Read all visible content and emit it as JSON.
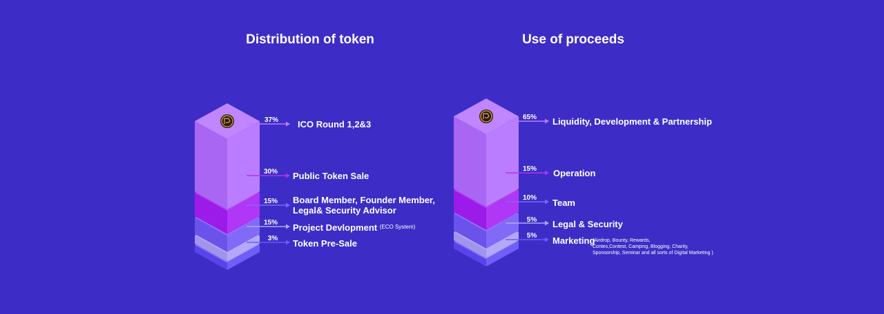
{
  "chart_data": [
    {
      "type": "bar",
      "title": "Distribution of token",
      "categories": [
        "ICO Round 1,2&3",
        "Public Token Sale",
        "Board Member, Founder Member, Legal& Security Advisor",
        "Project Devlopment",
        "Token Pre-Sale"
      ],
      "values": [
        37,
        30,
        15,
        15,
        3
      ],
      "value_labels": [
        "37%",
        "30%",
        "15%",
        "15%",
        "3%"
      ],
      "label_lines": [
        [
          "ICO Round 1,2&3"
        ],
        [
          "Public Token Sale"
        ],
        [
          "Board Member, Founder Member,",
          "Legal& Security Advisor"
        ],
        [
          "Project Devlopment"
        ],
        [
          "Token Pre-Sale"
        ]
      ],
      "notes": [
        "",
        "",
        "",
        "(ECO System)",
        ""
      ],
      "colors": [
        "#b26bff",
        "#a51cf4",
        "#7156f7",
        "#a99cf9",
        "#5e48f7"
      ]
    },
    {
      "type": "bar",
      "title": "Use of proceeds",
      "categories": [
        "Liquidity, Development & Partnership",
        "Operation",
        "Team",
        "Legal & Security",
        "Marketing"
      ],
      "values": [
        65,
        15,
        10,
        5,
        5
      ],
      "value_labels": [
        "65%",
        "15%",
        "10%",
        "5%",
        "5%"
      ],
      "label_lines": [
        [
          "Liquidity, Development & Partnership"
        ],
        [
          "Operation"
        ],
        [
          "Team"
        ],
        [
          "Legal & Security"
        ],
        [
          "Marketing"
        ]
      ],
      "notes": [
        "",
        "",
        "",
        "",
        "(Airdrop, Bounty, Rewards, Contes,Contest, Camping, Blogging, Charity, Sponsorship, Seminar and all sorts of Digital Marketing )"
      ],
      "note_lines": [
        "(Airdrop, Bounty, Rewards,",
        "Contes,Contest, Camping, Blogging, Charity,",
        "Sponsorship, Seminar and all sorts of Digital Marketing )"
      ],
      "colors": [
        "#b26bff",
        "#a51cf4",
        "#7156f7",
        "#a99cf9",
        "#5e48f7"
      ]
    }
  ],
  "coin_icon": "token-coin-icon",
  "background": "#3d2dc6"
}
